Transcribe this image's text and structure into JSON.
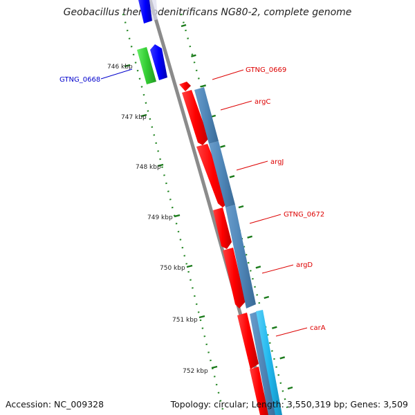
{
  "title": "Geobacillus thermodenitrificans NG80-2, complete genome",
  "footer": {
    "accession": "Accession: NC_009328",
    "summary": "Topology: circular; Length: 3,550,319 bp; Genes: 3,509"
  },
  "colors": {
    "backbone": "#888888",
    "tick": "#1a7a1a",
    "gene_red": "#ff0000",
    "gene_blue": "#0000ff",
    "gene_green": "#33cc33",
    "feature_steel": "#4f86b8",
    "feature_cyan": "#21b8ee",
    "label_red": "#dd0000",
    "label_blue": "#0000cc"
  },
  "ticks": [
    {
      "label": "746 kbp"
    },
    {
      "label": "747 kbp"
    },
    {
      "label": "748 kbp"
    },
    {
      "label": "749 kbp"
    },
    {
      "label": "750 kbp"
    },
    {
      "label": "751 kbp"
    },
    {
      "label": "752 kbp"
    }
  ],
  "genes": [
    {
      "name": "GTNG_0668",
      "color": "label_blue"
    },
    {
      "name": "GTNG_0669",
      "color": "label_red"
    },
    {
      "name": "argC",
      "color": "label_red"
    },
    {
      "name": "argJ",
      "color": "label_red"
    },
    {
      "name": "GTNG_0672",
      "color": "label_red"
    },
    {
      "name": "argD",
      "color": "label_red"
    },
    {
      "name": "carA",
      "color": "label_red"
    }
  ]
}
